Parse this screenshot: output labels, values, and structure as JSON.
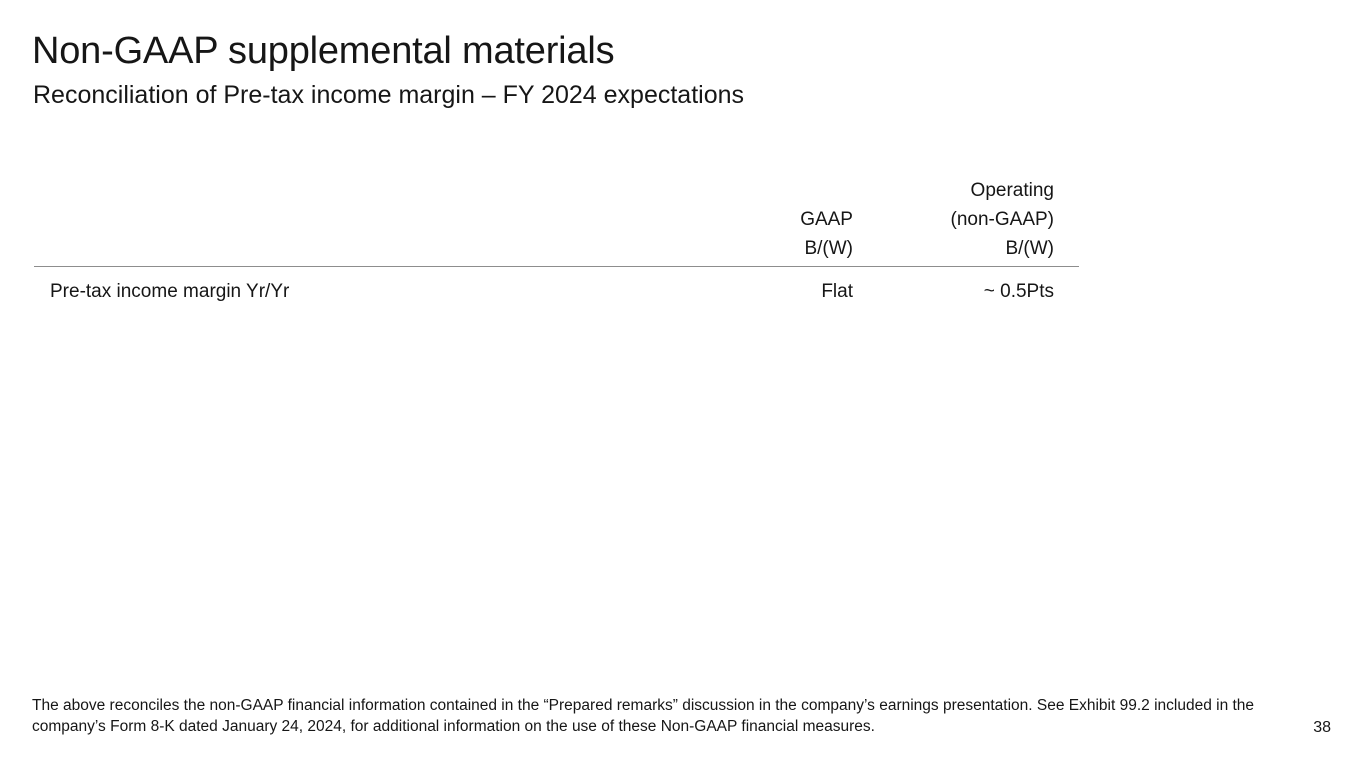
{
  "slide": {
    "title": "Non-GAAP supplemental materials",
    "subtitle": "Reconciliation of Pre-tax income margin – FY 2024 expectations",
    "page_number": "38"
  },
  "table": {
    "columns": [
      {
        "lines": [
          "",
          "GAAP",
          "B/(W)"
        ]
      },
      {
        "lines": [
          "Operating",
          "(non-GAAP)",
          "B/(W)"
        ]
      }
    ],
    "rows": [
      {
        "label": "Pre-tax income margin Yr/Yr",
        "gaap": "Flat",
        "operating": "~ 0.5Pts"
      }
    ]
  },
  "footnote": "The above reconciles the non-GAAP financial information contained in the “Prepared remarks” discussion in the company’s earnings presentation. See Exhibit 99.2 included in the company’s Form 8-K dated January 24, 2024, for additional information on the use of these Non-GAAP financial measures."
}
